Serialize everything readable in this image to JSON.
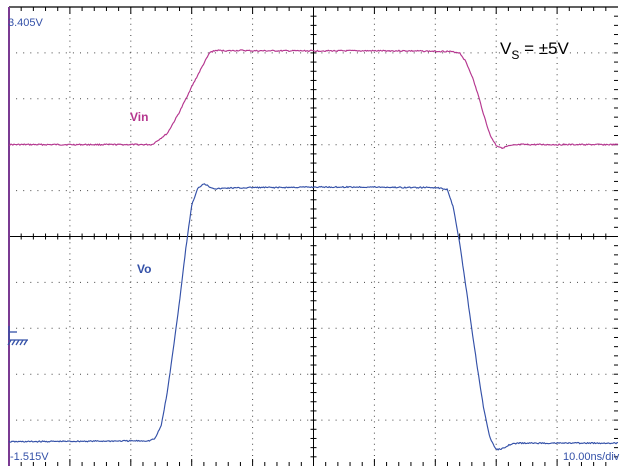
{
  "chart_data": {
    "type": "line",
    "title": "",
    "xlabel": "",
    "ylabel": "",
    "annotations": {
      "top_left_level": "3.405V",
      "bottom_left_level": "-1.515V",
      "timebase": "10.00ns/div",
      "supply_main": "V",
      "supply_sub": "S",
      "supply_rest": " = ±5V"
    },
    "axes": {
      "x_divisions": 10,
      "y_divisions": 10,
      "x_unit": "ns",
      "x_per_div": 10,
      "xlim": [
        0,
        100
      ],
      "ylim": [
        -1.515,
        3.405
      ],
      "grid": true
    },
    "series": [
      {
        "name": "Vin",
        "color": "#b5368f",
        "x": [
          0,
          23.5,
          26,
          28,
          30,
          32,
          33,
          34,
          36,
          38,
          40,
          45,
          50,
          55,
          60,
          65,
          70,
          72,
          74,
          75,
          76,
          77,
          78,
          79,
          80,
          81,
          82,
          84,
          88,
          92,
          96,
          100
        ],
        "y": [
          1.93,
          1.93,
          2.05,
          2.28,
          2.55,
          2.8,
          2.92,
          2.94,
          2.935,
          2.94,
          2.935,
          2.935,
          2.935,
          2.935,
          2.935,
          2.935,
          2.93,
          2.93,
          2.915,
          2.82,
          2.67,
          2.47,
          2.24,
          2.03,
          1.92,
          1.895,
          1.915,
          1.93,
          1.93,
          1.93,
          1.93,
          1.93
        ]
      },
      {
        "name": "Vo",
        "color": "#3451a8",
        "x": [
          0,
          23,
          24,
          25,
          26,
          27,
          28,
          29,
          30,
          31,
          32,
          33,
          34,
          35,
          36,
          38,
          40,
          45,
          50,
          55,
          60,
          65,
          70,
          72,
          73,
          74,
          75,
          76,
          77,
          78,
          79,
          80,
          81,
          82,
          83,
          84,
          86,
          90,
          95,
          100
        ],
        "y": [
          -1.255,
          -1.245,
          -1.22,
          -1.08,
          -0.72,
          -0.25,
          0.25,
          0.8,
          1.28,
          1.46,
          1.515,
          1.475,
          1.455,
          1.46,
          1.465,
          1.465,
          1.47,
          1.47,
          1.475,
          1.475,
          1.475,
          1.47,
          1.47,
          1.45,
          1.25,
          0.87,
          0.42,
          -0.05,
          -0.5,
          -0.92,
          -1.22,
          -1.34,
          -1.33,
          -1.29,
          -1.275,
          -1.27,
          -1.27,
          -1.27,
          -1.27,
          -1.27
        ]
      }
    ]
  }
}
